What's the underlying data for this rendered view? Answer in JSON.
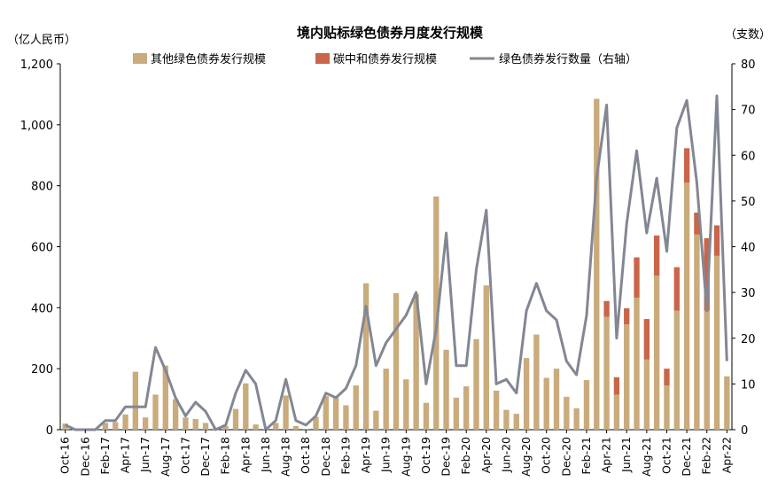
{
  "chart_data": {
    "type": "bar",
    "title": "境内贴标绿色债券月度发行规模",
    "left_unit": "（亿人民币）",
    "right_unit": "（支数）",
    "ylim": [
      0,
      1200
    ],
    "y2lim": [
      0,
      80
    ],
    "y_ticks": [
      "0",
      "200",
      "400",
      "600",
      "800",
      "1,000",
      "1,200"
    ],
    "y2_ticks": [
      "0",
      "10",
      "20",
      "30",
      "40",
      "50",
      "60",
      "70",
      "80"
    ],
    "x_tick_labels": [
      "Oct-16",
      "Dec-16",
      "Feb-17",
      "Apr-17",
      "Jun-17",
      "Aug-17",
      "Oct-17",
      "Dec-17",
      "Feb-18",
      "Apr-18",
      "Jun-18",
      "Aug-18",
      "Oct-18",
      "Dec-18",
      "Feb-19",
      "Apr-19",
      "Jun-19",
      "Aug-19",
      "Oct-19",
      "Dec-19",
      "Feb-20",
      "Apr-20",
      "Jun-20",
      "Aug-20",
      "Oct-20",
      "Dec-20",
      "Feb-21",
      "Apr-21",
      "Jun-21",
      "Aug-21",
      "Oct-21",
      "Dec-21",
      "Feb-22",
      "Apr-22"
    ],
    "legend": {
      "other": "其他绿色债券发行规模",
      "carbon": "碳中和债券发行规模",
      "count": "绿色债券发行数量（右轴）"
    },
    "colors": {
      "other": "#c9ab7c",
      "carbon": "#c9654a",
      "count": "#838793"
    },
    "categories": [
      "Oct-16",
      "Nov-16",
      "Dec-16",
      "Jan-17",
      "Feb-17",
      "Mar-17",
      "Apr-17",
      "May-17",
      "Jun-17",
      "Jul-17",
      "Aug-17",
      "Sep-17",
      "Oct-17",
      "Nov-17",
      "Dec-17",
      "Jan-18",
      "Feb-18",
      "Mar-18",
      "Apr-18",
      "May-18",
      "Jun-18",
      "Jul-18",
      "Aug-18",
      "Sep-18",
      "Oct-18",
      "Nov-18",
      "Dec-18",
      "Jan-19",
      "Feb-19",
      "Mar-19",
      "Apr-19",
      "May-19",
      "Jun-19",
      "Jul-19",
      "Aug-19",
      "Sep-19",
      "Oct-19",
      "Nov-19",
      "Dec-19",
      "Jan-20",
      "Feb-20",
      "Mar-20",
      "Apr-20",
      "May-20",
      "Jun-20",
      "Jul-20",
      "Aug-20",
      "Sep-20",
      "Oct-20",
      "Nov-20",
      "Dec-20",
      "Jan-21",
      "Feb-21",
      "Mar-21",
      "Apr-21",
      "May-21",
      "Jun-21",
      "Jul-21",
      "Aug-21",
      "Sep-21",
      "Oct-21",
      "Nov-21",
      "Dec-21",
      "Jan-22",
      "Feb-22",
      "Mar-22",
      "Apr-22"
    ],
    "series": [
      {
        "name": "其他绿色债券发行规模",
        "values": [
          20,
          3,
          3,
          3,
          22,
          25,
          50,
          190,
          40,
          115,
          210,
          100,
          40,
          35,
          22,
          5,
          12,
          68,
          152,
          17,
          3,
          22,
          112,
          12,
          3,
          42,
          110,
          105,
          80,
          145,
          480,
          62,
          200,
          448,
          165,
          445,
          88,
          765,
          262,
          105,
          142,
          297,
          473,
          128,
          65,
          52,
          235,
          312,
          170,
          200,
          108,
          70,
          163,
          1085,
          370,
          115,
          345,
          433,
          230,
          505,
          145,
          390,
          810,
          640,
          390,
          570,
          175
        ]
      },
      {
        "name": "碳中和债券发行规模",
        "values": [
          0,
          0,
          0,
          0,
          0,
          0,
          0,
          0,
          0,
          0,
          0,
          0,
          0,
          0,
          0,
          0,
          0,
          0,
          0,
          0,
          0,
          0,
          0,
          0,
          0,
          0,
          0,
          0,
          0,
          0,
          0,
          0,
          0,
          0,
          0,
          0,
          0,
          0,
          0,
          0,
          0,
          0,
          0,
          0,
          0,
          0,
          0,
          0,
          0,
          0,
          0,
          0,
          0,
          0,
          52,
          57,
          53,
          132,
          133,
          132,
          55,
          143,
          113,
          72,
          238,
          100,
          0
        ]
      },
      {
        "name": "绿色债券发行数量（右轴）",
        "axis": "right",
        "values": [
          1,
          0,
          0,
          0,
          2,
          2,
          5,
          5,
          5,
          18,
          13,
          7,
          3,
          6,
          4,
          0,
          1,
          8,
          13,
          10,
          0,
          2,
          11,
          2,
          1,
          3,
          8,
          7,
          9,
          14,
          27,
          14,
          19,
          22,
          25,
          30,
          10,
          22,
          43,
          14,
          14,
          35,
          48,
          10,
          11,
          8,
          26,
          32,
          26,
          24,
          15,
          12,
          25,
          55,
          71,
          20,
          45,
          61,
          43,
          55,
          39,
          66,
          72,
          54,
          26,
          73,
          15
        ]
      }
    ]
  }
}
